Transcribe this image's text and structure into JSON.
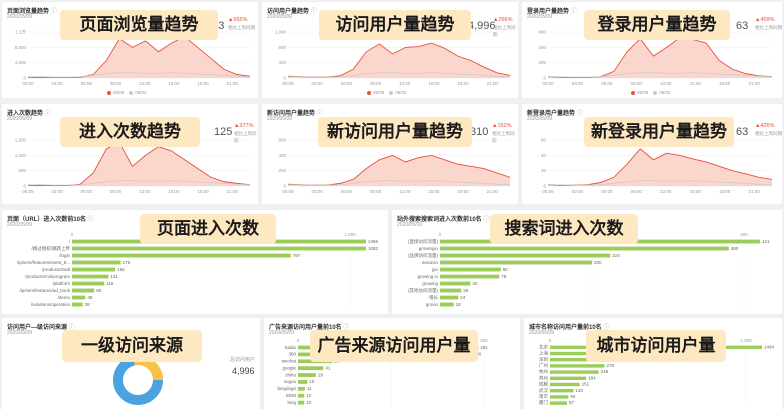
{
  "overlays": [
    "页面浏览量趋势",
    "访问用户量趋势",
    "登录用户量趋势",
    "进入次数趋势",
    "新访问用户量趋势",
    "新登录用户量趋势",
    "页面进入次数",
    "搜索词进入次数",
    "一级访问来源",
    "广告来源访问用户量",
    "城市访问用户量"
  ],
  "date": "2020/05/09",
  "compare": "相比上周同期",
  "legend": [
    "05/09",
    "05/02"
  ],
  "trend_cards": [
    {
      "title": "页面浏览量趋势",
      "value": "883",
      "change": "▲655%",
      "y_ticks": [
        "1.2万",
        "8,000",
        "4,000",
        "0"
      ],
      "x_ticks": [
        "00:00",
        "03:00",
        "06:00",
        "09:00",
        "12:00",
        "15:00",
        "18:00",
        "21:00"
      ]
    },
    {
      "title": "访问用户量趋势",
      "value": "4,996",
      "change": "▲266%",
      "y_ticks": [
        "1,000",
        "600",
        "400",
        "0"
      ],
      "x_ticks": [
        "00:00",
        "03:00",
        "06:00",
        "09:00",
        "12:00",
        "15:00",
        "18:00",
        "21:00"
      ]
    },
    {
      "title": "登录用户量趋势",
      "value": "63",
      "change": "▲459%",
      "y_ticks": [
        "600",
        "400",
        "200",
        "0"
      ],
      "x_ticks": [
        "00:00",
        "03:00",
        "06:00",
        "09:00",
        "12:00",
        "15:00",
        "18:00",
        "21:00"
      ]
    },
    {
      "title": "进入次数趋势",
      "value": "125",
      "change": "▲377%",
      "y_ticks": [
        "1,500",
        "1,000",
        "500",
        "0"
      ],
      "x_ticks": [
        "05:09",
        "03:00",
        "06:00",
        "09:00",
        "12:00",
        "15:00",
        "18:00",
        "21:00"
      ]
    },
    {
      "title": "新访问用户量趋势",
      "value": "310",
      "change": "▲152%",
      "y_ticks": [
        "800",
        "400",
        "200",
        "0"
      ],
      "x_ticks": [
        "05:09",
        "03:00",
        "06:00",
        "09:00",
        "12:00",
        "15:00",
        "18:00",
        "21:00"
      ]
    },
    {
      "title": "新登录用户量趋势",
      "value": "63",
      "change": "▲426%",
      "y_ticks": [
        "60",
        "40",
        "20",
        "0"
      ],
      "x_ticks": [
        "05:09",
        "03:00",
        "06:00",
        "09:00",
        "12:00",
        "15:00",
        "18:00",
        "21:00"
      ]
    }
  ],
  "pages_card": {
    "title": "页面（URL）进入次数前10名",
    "axis": [
      "0",
      "1,000"
    ],
    "rows": [
      {
        "label": "/",
        "value": 1366
      },
      {
        "label": "/跳过授权/跳转上传",
        "value": 1082
      },
      {
        "label": "/login",
        "value": 787
      },
      {
        "label": "/ip/sem/features/event_tr...",
        "value": 175
      },
      {
        "label": "/products/sadi",
        "value": 155
      },
      {
        "label": "/products/miniprogram",
        "value": 131
      },
      {
        "label": "/platform",
        "value": 116
      },
      {
        "label": "/ip/sem/features/ad_track",
        "value": 80
      },
      {
        "label": "/demo",
        "value": 48
      },
      {
        "label": "/solutions/operation",
        "value": 38
      }
    ]
  },
  "search_card": {
    "title": "站外搜索搜索词进入次数前10名",
    "axis": [
      "0",
      "200",
      "400"
    ],
    "rows": [
      {
        "label": "(直接访问流量)",
        "value": 421
      },
      {
        "label": "growingio",
        "value": 380
      },
      {
        "label": "(品牌访问流量)",
        "value": 224
      },
      {
        "label": "amazon",
        "value": 200
      },
      {
        "label": "gio",
        "value": 80
      },
      {
        "label": "growing io",
        "value": 78
      },
      {
        "label": "growing",
        "value": 40
      },
      {
        "label": "(其他访问流量)",
        "value": 28
      },
      {
        "label": "增长",
        "value": 24
      },
      {
        "label": "grovio",
        "value": 18
      }
    ]
  },
  "source_card": {
    "title": "访问用户—级访问来源",
    "total_label": "总访问用户",
    "total_value": "4,996"
  },
  "ads_card": {
    "title": "广告来源访问用户量前10名",
    "axis": [
      "0",
      "200",
      "300"
    ],
    "rows": [
      {
        "label": "baidu",
        "value": 291
      },
      {
        "label": "360",
        "value": 280
      },
      {
        "label": "wechat",
        "value": 55
      },
      {
        "label": "google",
        "value": 41
      },
      {
        "label": "zhihu",
        "value": 29
      },
      {
        "label": "sogou",
        "value": 15
      },
      {
        "label": "bingdogo",
        "value": 11
      },
      {
        "label": "EDM",
        "value": 10
      },
      {
        "label": "bing",
        "value": 10
      }
    ]
  },
  "city_card": {
    "title": "城市名称访问用户量前10名",
    "axis": [
      "0",
      "1,000"
    ],
    "rows": [
      {
        "label": "北京",
        "value": 1484
      },
      {
        "label": "上海",
        "value": 469
      },
      {
        "label": "深圳",
        "value": 450
      },
      {
        "label": "广州",
        "value": 278
      },
      {
        "label": "杭州",
        "value": 248
      },
      {
        "label": "苏州",
        "value": 184
      },
      {
        "label": "成都",
        "value": 151
      },
      {
        "label": "武汉",
        "value": 120
      },
      {
        "label": "南京",
        "value": 94
      },
      {
        "label": "厦门",
        "value": 87
      }
    ]
  },
  "colors": {
    "accent": "#e8503b",
    "area": "#f6b4a4",
    "prev": "#c9c9c9",
    "bar": "#9ccc5a",
    "donut_a": "#4aa3df",
    "donut_b": "#f8c14a"
  }
}
